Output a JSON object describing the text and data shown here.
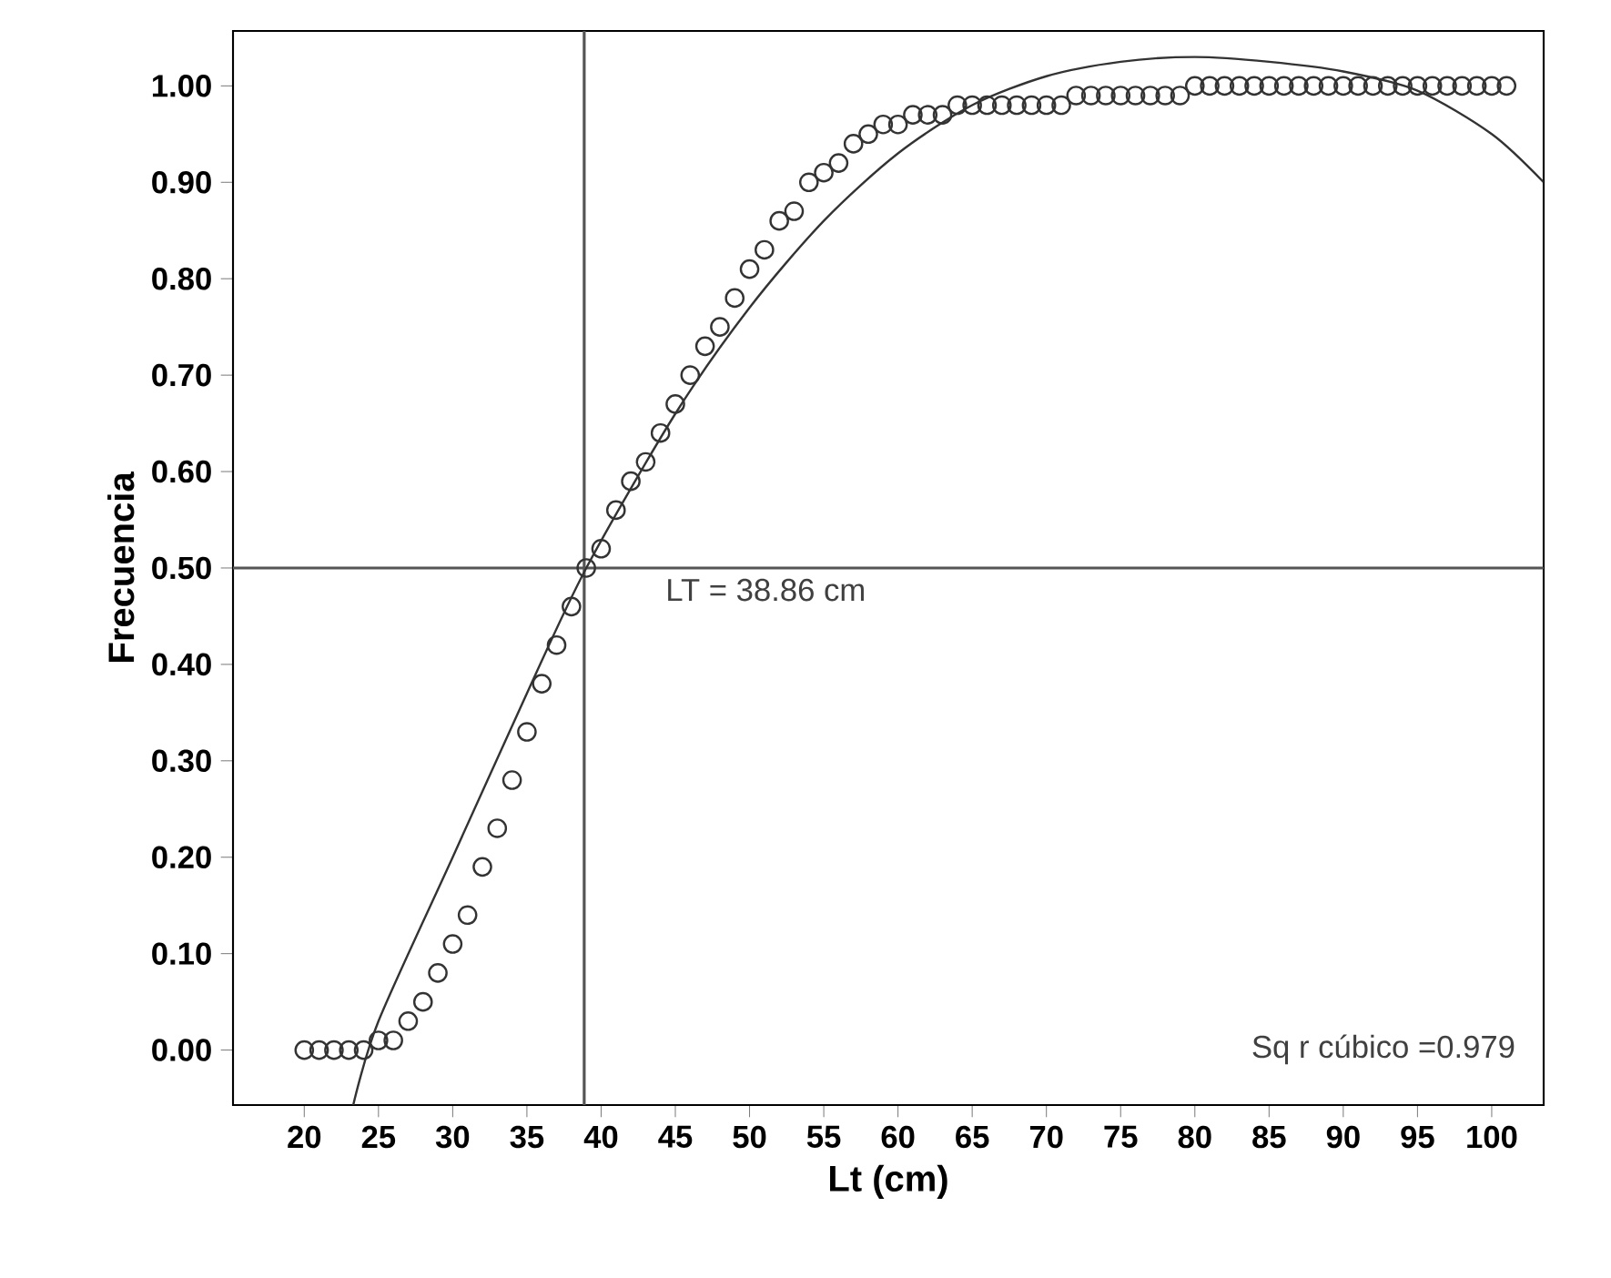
{
  "chart_data": {
    "type": "scatter",
    "xlabel": "Lt (cm)",
    "ylabel": "Frecuencia",
    "xlim": [
      15.2,
      103.5
    ],
    "ylim": [
      -0.057,
      1.057
    ],
    "xticks": [
      20,
      25,
      30,
      35,
      40,
      45,
      50,
      55,
      60,
      65,
      70,
      75,
      80,
      85,
      90,
      95,
      100
    ],
    "yticks": [
      {
        "value": 0,
        "label": "0.00"
      },
      {
        "value": 0.1,
        "label": "0.10"
      },
      {
        "value": 0.2,
        "label": "0.20"
      },
      {
        "value": 0.3,
        "label": "0.30"
      },
      {
        "value": 0.4,
        "label": "0.40"
      },
      {
        "value": 0.5,
        "label": "0.50"
      },
      {
        "value": 0.6,
        "label": "0.60"
      },
      {
        "value": 0.7,
        "label": "0.70"
      },
      {
        "value": 0.8,
        "label": "0.80"
      },
      {
        "value": 0.9,
        "label": "0.90"
      },
      {
        "value": 1.0,
        "label": "1.00"
      }
    ],
    "grid": false,
    "marker": "circle",
    "series": [
      {
        "color": "#333333",
        "x": [
          20,
          21,
          22,
          23,
          24,
          25,
          26,
          27,
          28,
          29,
          30,
          31,
          32,
          33,
          34,
          35,
          36,
          37,
          38,
          39,
          40,
          41,
          42,
          43,
          44,
          45,
          46,
          47,
          48,
          49,
          50,
          51,
          52,
          53,
          54,
          55,
          56,
          57,
          58,
          59,
          60,
          61,
          62,
          63,
          64,
          65,
          66,
          67,
          68,
          69,
          70,
          71,
          72,
          73,
          74,
          75,
          76,
          77,
          78,
          79,
          80,
          81,
          82,
          83,
          84,
          85,
          86,
          87,
          88,
          89,
          90,
          91,
          92,
          93,
          94,
          95,
          96,
          97,
          98,
          99,
          100,
          101
        ],
        "values": [
          0,
          0,
          0,
          0,
          0,
          0.01,
          0.01,
          0.03,
          0.05,
          0.08,
          0.11,
          0.14,
          0.19,
          0.23,
          0.28,
          0.33,
          0.38,
          0.42,
          0.46,
          0.5,
          0.52,
          0.56,
          0.59,
          0.61,
          0.64,
          0.67,
          0.7,
          0.73,
          0.75,
          0.78,
          0.81,
          0.83,
          0.86,
          0.87,
          0.9,
          0.91,
          0.92,
          0.94,
          0.95,
          0.96,
          0.96,
          0.97,
          0.97,
          0.97,
          0.98,
          0.98,
          0.98,
          0.98,
          0.98,
          0.98,
          0.98,
          0.98,
          0.99,
          0.99,
          0.99,
          0.99,
          0.99,
          0.99,
          0.99,
          0.99,
          1,
          1,
          1,
          1,
          1,
          1,
          1,
          1,
          1,
          1,
          1,
          1,
          1,
          1,
          1,
          1,
          1,
          1,
          1,
          1,
          1,
          1
        ]
      },
      {
        "type": "line",
        "color": "#333333",
        "marker": "none",
        "x": [
          23.3,
          25,
          30,
          35,
          39,
          45,
          50,
          55,
          60,
          65,
          70,
          75,
          80,
          85,
          90,
          95,
          100,
          103.5
        ],
        "values": [
          -0.057,
          0.03,
          0.2,
          0.37,
          0.5,
          0.66,
          0.77,
          0.86,
          0.93,
          0.98,
          1.01,
          1.025,
          1.03,
          1.025,
          1.015,
          0.995,
          0.95,
          0.9
        ]
      }
    ],
    "ref_lines": [
      {
        "axis": "x",
        "value": 38.86,
        "color": "#555555"
      },
      {
        "axis": "y",
        "value": 0.5,
        "color": "#555555"
      }
    ],
    "annotations": [
      {
        "text": "LT = 38.86 cm",
        "x": 38.86,
        "y": 0.5
      },
      "Sq r cúbico =0.979"
    ]
  }
}
